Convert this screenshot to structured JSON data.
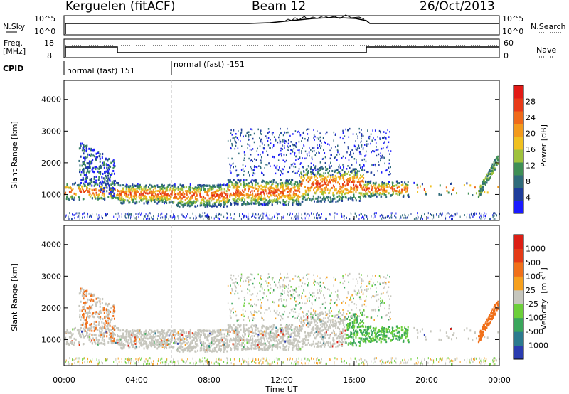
{
  "header": {
    "station": "Kerguelen (fitACF)",
    "beam": "Beam 12",
    "date": "26/Oct/2013"
  },
  "top_panels": {
    "nsky_label": "N.Sky",
    "nsearch_label": "N.Search",
    "nsky_ticks": [
      "10^5",
      "10^0"
    ],
    "nsearch_ticks": [
      "10^5",
      "10^0"
    ],
    "freq_label_line1": "Freq.",
    "freq_label_line2": "[MHz]",
    "freq_ticks": [
      "18",
      "8"
    ],
    "nave_label": "Nave",
    "nave_ticks": [
      "60",
      "0"
    ],
    "cpid_label": "CPID",
    "cpid_segments": [
      {
        "label": "normal (fast) 151",
        "start_h": 0,
        "end_h": 6
      },
      {
        "label": "normal (fast) -151",
        "start_h": 6,
        "end_h": 24
      }
    ]
  },
  "chart_data": [
    {
      "type": "heatmap",
      "title": "",
      "xlabel": "Time UT",
      "ylabel": "Slant Range [km]",
      "xlim": [
        0,
        24
      ],
      "ylim": [
        180,
        4600
      ],
      "yticks": [
        "1000",
        "2000",
        "3000",
        "4000"
      ],
      "colorbar": {
        "label": "Power [dB]",
        "ticks": [
          "28",
          "24",
          "20",
          "16",
          "12",
          "8",
          "4"
        ],
        "colors": [
          "#1a1aff",
          "#1e3c9a",
          "#2f6b7a",
          "#3f8f55",
          "#9fc23c",
          "#f0c020",
          "#f39a1c",
          "#ef6a1a",
          "#e83a18",
          "#e21a16"
        ]
      }
    },
    {
      "type": "heatmap",
      "title": "",
      "xlabel": "Time UT",
      "ylabel": "Slant Range [km]",
      "xlim": [
        0,
        24
      ],
      "ylim": [
        180,
        4600
      ],
      "yticks": [
        "1000",
        "2000",
        "3000",
        "4000"
      ],
      "colorbar": {
        "label_main": "Velocity",
        "label_unit": "[m s",
        "label_exp": "-1",
        "label_close": "]",
        "ticks": [
          "1000",
          "500",
          "100",
          "25",
          "-25",
          "-100",
          "-500",
          "-1000"
        ],
        "colors": [
          "#2a3cb0",
          "#2b7a8e",
          "#3aa65c",
          "#6ccf3a",
          "#c6c6bd",
          "#f6a01e",
          "#f0701a",
          "#e43a16",
          "#dc1e14"
        ]
      }
    }
  ],
  "xaxis": {
    "ticks": [
      "00:00",
      "04:00",
      "08:00",
      "12:00",
      "16:00",
      "20:00",
      "00:00"
    ],
    "label": "Time UT"
  },
  "colors": {
    "low_scatter": "#1e3c9a",
    "power_mid": "#3f8f55",
    "power_high": "#f0c020",
    "power_max": "#e21a16",
    "velocity_grey": "#c6c6bd",
    "velocity_green": "#3aa65c",
    "velocity_orange": "#f0701a"
  }
}
